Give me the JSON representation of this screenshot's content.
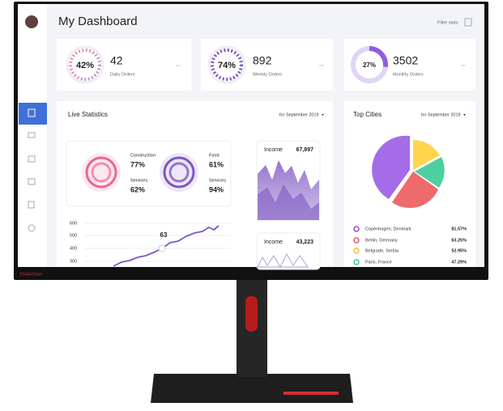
{
  "brand": "ThinkVision",
  "header": {
    "title": "My Dashboard",
    "filter": "Filter stats"
  },
  "stats": [
    {
      "ring": "42%",
      "value": "42",
      "label": "Daily Orders"
    },
    {
      "ring": "74%",
      "value": "892",
      "label": "Weekly Orders"
    },
    {
      "ring": "27%",
      "value": "3502",
      "label": "Monthly Orders"
    }
  ],
  "live_statistics": {
    "title": "Live Statistics",
    "period": "for September 2019",
    "categories": [
      {
        "name": "Construction",
        "value": "77%"
      },
      {
        "name": "Services",
        "value": "62%"
      },
      {
        "name": "Food",
        "value": "61%"
      },
      {
        "name": "Services",
        "value": "94%"
      }
    ],
    "income": [
      {
        "label": "Income",
        "value": "67,897"
      },
      {
        "label": "Income",
        "value": "43,223"
      }
    ],
    "line_chart": {
      "yticks": [
        "600",
        "500",
        "400",
        "300"
      ],
      "annotation": "63"
    }
  },
  "top_cities": {
    "title": "Top Cities",
    "period": "for September 2019",
    "rows": [
      {
        "city": "Copenhagen, Denmark",
        "value": "81.57%"
      },
      {
        "city": "Berlin, Germany",
        "value": "63.25%"
      },
      {
        "city": "Belgrade, Serbia",
        "value": "52.95%"
      },
      {
        "city": "Paris, France",
        "value": "47.29%"
      }
    ]
  }
}
